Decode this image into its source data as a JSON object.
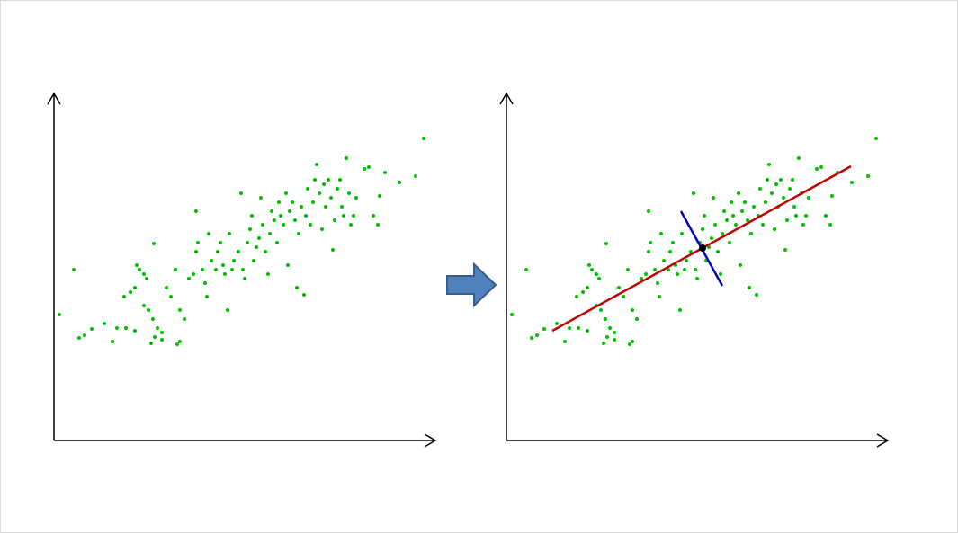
{
  "chart_data": [
    {
      "type": "scatter",
      "color": "#00c000",
      "xlim": [
        0,
        424
      ],
      "ylim": [
        0,
        386
      ],
      "x": [
        6,
        22,
        28,
        34,
        42,
        56,
        65,
        70,
        80,
        90,
        78,
        85,
        90,
        95,
        100,
        103,
        92,
        100,
        105,
        110,
        115,
        112,
        108,
        120,
        125,
        130,
        135,
        111,
        140,
        145,
        150,
        155,
        158,
        158,
        160,
        165,
        168,
        170,
        172,
        175,
        180,
        182,
        185,
        188,
        190,
        193,
        195,
        198,
        200,
        205,
        208,
        210,
        212,
        215,
        218,
        220,
        222,
        225,
        228,
        230,
        232,
        235,
        238,
        240,
        242,
        245,
        248,
        250,
        252,
        255,
        258,
        260,
        262,
        265,
        268,
        270,
        272,
        275,
        278,
        280,
        282,
        285,
        288,
        290,
        292,
        295,
        298,
        300,
        302,
        305,
        308,
        310,
        312,
        315,
        318,
        320,
        322,
        325,
        328,
        330,
        333,
        336,
        345,
        350,
        355,
        360,
        362,
        368,
        384,
        402,
        411,
        140,
        137,
        120
      ],
      "y": [
        140,
        190,
        114,
        117,
        124,
        130,
        110,
        125,
        125,
        122,
        160,
        165,
        170,
        190,
        185,
        180,
        195,
        150,
        145,
        135,
        125,
        115,
        108,
        120,
        170,
        160,
        190,
        219,
        145,
        135,
        180,
        185,
        210,
        255,
        220,
        190,
        175,
        160,
        230,
        200,
        190,
        210,
        220,
        195,
        185,
        145,
        230,
        190,
        200,
        210,
        275,
        190,
        180,
        220,
        235,
        250,
        200,
        215,
        225,
        270,
        240,
        210,
        185,
        230,
        255,
        245,
        220,
        265,
        250,
        240,
        275,
        195,
        255,
        265,
        245,
        170,
        230,
        260,
        162,
        250,
        280,
        240,
        265,
        290,
        307,
        275,
        235,
        285,
        260,
        290,
        270,
        212,
        245,
        280,
        290,
        260,
        250,
        314,
        275,
        240,
        250,
        270,
        302,
        304,
        250,
        240,
        272,
        298,
        287,
        294,
        336,
        110,
        107,
        112
      ]
    },
    {
      "type": "scatter",
      "color": "#00c000",
      "xlim": [
        0,
        424
      ],
      "ylim": [
        0,
        386
      ],
      "x": [
        6,
        22,
        28,
        34,
        42,
        56,
        65,
        70,
        80,
        90,
        78,
        85,
        90,
        95,
        100,
        103,
        92,
        100,
        105,
        110,
        115,
        112,
        108,
        120,
        125,
        130,
        135,
        111,
        140,
        145,
        150,
        155,
        158,
        158,
        160,
        165,
        168,
        170,
        172,
        175,
        180,
        182,
        185,
        188,
        190,
        193,
        195,
        198,
        200,
        205,
        208,
        210,
        212,
        215,
        218,
        220,
        222,
        225,
        228,
        230,
        232,
        235,
        238,
        240,
        242,
        245,
        248,
        250,
        252,
        255,
        258,
        260,
        262,
        265,
        268,
        270,
        272,
        275,
        278,
        280,
        282,
        285,
        288,
        290,
        292,
        295,
        298,
        300,
        302,
        305,
        308,
        310,
        312,
        315,
        318,
        320,
        322,
        325,
        328,
        330,
        333,
        336,
        345,
        350,
        355,
        360,
        362,
        368,
        384,
        402,
        411,
        140,
        137,
        120
      ],
      "y": [
        140,
        190,
        114,
        117,
        124,
        130,
        110,
        125,
        125,
        122,
        160,
        165,
        170,
        190,
        185,
        180,
        195,
        150,
        145,
        135,
        125,
        115,
        108,
        120,
        170,
        160,
        190,
        219,
        145,
        135,
        180,
        185,
        210,
        255,
        220,
        190,
        175,
        160,
        230,
        200,
        190,
        210,
        220,
        195,
        185,
        145,
        230,
        190,
        200,
        210,
        275,
        190,
        180,
        220,
        235,
        250,
        200,
        215,
        225,
        270,
        240,
        210,
        185,
        230,
        255,
        245,
        220,
        265,
        250,
        240,
        275,
        195,
        255,
        265,
        245,
        170,
        230,
        260,
        162,
        250,
        280,
        240,
        265,
        290,
        307,
        275,
        235,
        285,
        260,
        290,
        270,
        212,
        245,
        280,
        290,
        260,
        250,
        314,
        275,
        240,
        250,
        270,
        302,
        304,
        250,
        240,
        272,
        298,
        287,
        294,
        336,
        110,
        107,
        112
      ],
      "lines": [
        {
          "color": "#c00000",
          "x": [
            51,
            383
          ],
          "y": [
            122,
            305
          ]
        },
        {
          "color": "#0000c0",
          "x": [
            194,
            240
          ],
          "y": [
            255,
            172
          ]
        }
      ],
      "center": {
        "x": 218,
        "y": 214
      }
    }
  ]
}
